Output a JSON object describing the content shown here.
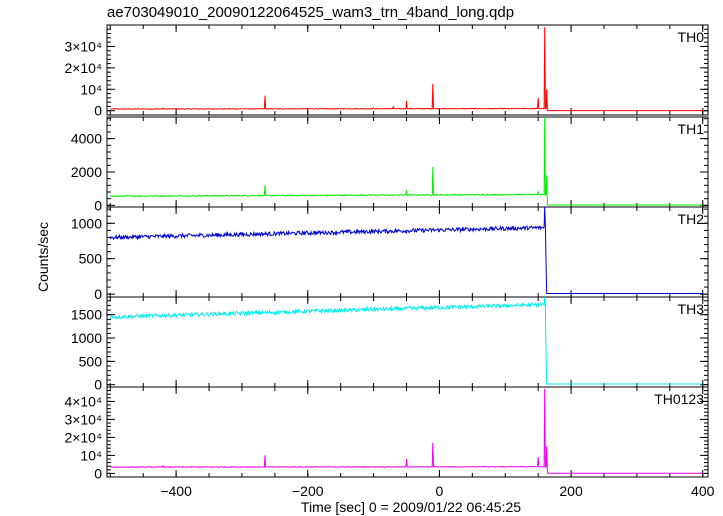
{
  "title": "ae703049010_20090122064525_wam3_trn_4band_long.qdp",
  "xlabel": "Time [sec] 0 = 2009/01/22 06:45:25",
  "ylabel": "Counts/sec",
  "colors": {
    "TH0": "#ff0000",
    "TH1": "#00ee00",
    "TH2": "#0000cc",
    "TH3": "#00eeee",
    "TH0123": "#ee00ee"
  },
  "chart_data": {
    "type": "line",
    "x": {
      "range": [
        -505,
        408
      ],
      "ticks": [
        -400,
        -200,
        0,
        200,
        400
      ],
      "tick_labels": [
        "−400",
        "−200",
        "0",
        "200",
        "400"
      ]
    },
    "grid": false,
    "series": [
      {
        "name": "TH0",
        "ylim": [
          -2000,
          40000
        ],
        "yticks": [
          0,
          10000,
          20000,
          30000
        ],
        "ytick_labels": [
          "0",
          "10⁴",
          "2×10⁴",
          "3×10⁴"
        ],
        "baseline_start": 800,
        "baseline_end": 1000,
        "noise": 150,
        "drop_time": 164,
        "after_level": 50,
        "spikes": [
          [
            -420,
            1200
          ],
          [
            -265,
            7000
          ],
          [
            -100,
            1200
          ],
          [
            -70,
            1800
          ],
          [
            -50,
            4500
          ],
          [
            -10,
            12500
          ],
          [
            150,
            6000
          ],
          [
            160,
            39000
          ],
          [
            163,
            10000
          ]
        ]
      },
      {
        "name": "TH1",
        "ylim": [
          -100,
          5300
        ],
        "yticks": [
          0,
          2000,
          4000
        ],
        "ytick_labels": [
          "0",
          "2000",
          "4000"
        ],
        "baseline_start": 550,
        "baseline_end": 650,
        "noise": 30,
        "drop_time": 164,
        "after_level": 20,
        "spikes": [
          [
            -265,
            1200
          ],
          [
            -50,
            900
          ],
          [
            -10,
            2300
          ],
          [
            150,
            800
          ],
          [
            160,
            5300
          ],
          [
            163,
            1800
          ]
        ]
      },
      {
        "name": "TH2",
        "ylim": [
          -40,
          1230
        ],
        "yticks": [
          0,
          500,
          1000
        ],
        "ytick_labels": [
          "0",
          "500",
          "1000"
        ],
        "baseline_start": 800,
        "baseline_end": 940,
        "noise": 28,
        "drop_time": 162,
        "after_level": 10,
        "spikes": [
          [
            160,
            1230
          ],
          [
            162,
            400
          ]
        ]
      },
      {
        "name": "TH3",
        "ylim": [
          -50,
          1880
        ],
        "yticks": [
          0,
          500,
          1000,
          1500
        ],
        "ytick_labels": [
          "0",
          "500",
          "1000",
          "1500"
        ],
        "baseline_start": 1450,
        "baseline_end": 1720,
        "noise": 40,
        "drop_time": 162,
        "after_level": 15,
        "spikes": [
          [
            160,
            1880
          ],
          [
            162,
            600
          ]
        ]
      },
      {
        "name": "TH0123",
        "ylim": [
          -2000,
          48000
        ],
        "yticks": [
          0,
          10000,
          20000,
          30000,
          40000
        ],
        "ytick_labels": [
          "0",
          "10⁴",
          "2×10⁴",
          "3×10⁴",
          "4×10⁴"
        ],
        "baseline_start": 3500,
        "baseline_end": 3700,
        "noise": 180,
        "drop_time": 164,
        "after_level": 100,
        "spikes": [
          [
            -420,
            4300
          ],
          [
            -265,
            10000
          ],
          [
            -50,
            8000
          ],
          [
            -10,
            17000
          ],
          [
            150,
            9000
          ],
          [
            160,
            47000
          ],
          [
            163,
            15000
          ]
        ]
      }
    ]
  }
}
